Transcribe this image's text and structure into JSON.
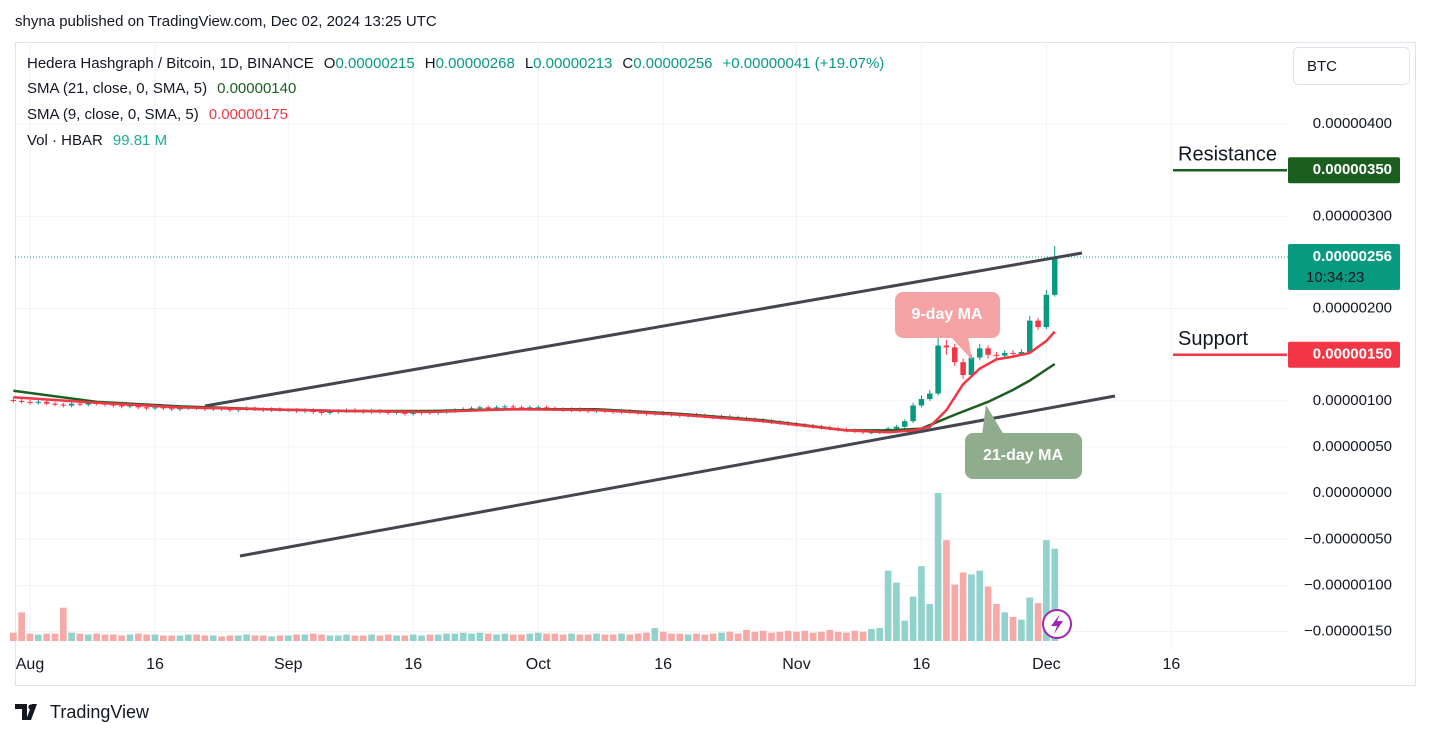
{
  "chart_data": {
    "type": "candlestick",
    "publisher": "shyna published on TradingView.com, Dec 02, 2024 13:25 UTC",
    "title": "Hedera Hashgraph / Bitcoin, 1D, BINANCE",
    "ohlc_letters": [
      "O",
      "H",
      "L",
      "C"
    ],
    "change": "+0.00000041 (+19.07%)",
    "up_color": "#089981",
    "down_color": "#f23645",
    "open": [
      1.01e-06,
      1e-06,
      9.9e-07,
      9.8e-07,
      9.9e-07,
      9.7e-07,
      9.6e-07,
      9.5e-07,
      9.7e-07,
      9.6e-07,
      9.8e-07,
      9.7e-07,
      9.6e-07,
      9.5e-07,
      9.4e-07,
      9.5e-07,
      9.3e-07,
      9.2e-07,
      9.3e-07,
      9.2e-07,
      9.1e-07,
      9.2e-07,
      9.3e-07,
      9.2e-07,
      9.1e-07,
      9.2e-07,
      9.1e-07,
      9e-07,
      9.1e-07,
      9.2e-07,
      9.1e-07,
      9e-07,
      9.1e-07,
      9e-07,
      9e-07,
      8.9e-07,
      9e-07,
      8.8e-07,
      8.7e-07,
      8.8e-07,
      8.9e-07,
      9e-07,
      8.9e-07,
      8.8e-07,
      8.9e-07,
      8.8e-07,
      8.7e-07,
      8.8e-07,
      8.6e-07,
      8.7e-07,
      8.8e-07,
      8.7e-07,
      8.8e-07,
      8.9e-07,
      9e-07,
      9.1e-07,
      9.2e-07,
      9.3e-07,
      9.2e-07,
      9.3e-07,
      9.4e-07,
      9.3e-07,
      9.2e-07,
      9.3e-07,
      9.3e-07,
      9.2e-07,
      9.1e-07,
      9e-07,
      9.1e-07,
      9e-07,
      8.9e-07,
      9e-07,
      8.9e-07,
      8.8e-07,
      8.9e-07,
      8.8e-07,
      8.7e-07,
      8.6e-07,
      8.7e-07,
      8.6e-07,
      8.5e-07,
      8.4e-07,
      8.5e-07,
      8.4e-07,
      8.3e-07,
      8.2e-07,
      8.3e-07,
      8.2e-07,
      8.1e-07,
      8e-07,
      7.9e-07,
      7.8e-07,
      7.7e-07,
      7.6e-07,
      7.5e-07,
      7.4e-07,
      7.3e-07,
      7.2e-07,
      7.1e-07,
      7e-07,
      6.9e-07,
      6.8e-07,
      6.7e-07,
      6.6e-07,
      6.6e-07,
      6.7e-07,
      7e-07,
      7.2e-07,
      7.8e-07,
      9.5e-07,
      1.02e-06,
      1.08e-06,
      1.6e-06,
      1.58e-06,
      1.42e-06,
      1.28e-06,
      1.47e-06,
      1.57e-06,
      1.5e-06,
      1.49e-06,
      1.52e-06,
      1.51e-06,
      1.53e-06,
      1.87e-06,
      1.8e-06,
      2.15e-06
    ],
    "high": [
      1.03e-06,
      1.02e-06,
      1.01e-06,
      1.01e-06,
      1.01e-06,
      9.9e-07,
      9.8e-07,
      9.9e-07,
      9.9e-07,
      1e-06,
      1e-06,
      9.9e-07,
      9.8e-07,
      9.7e-07,
      9.7e-07,
      9.7e-07,
      9.5e-07,
      9.5e-07,
      9.5e-07,
      9.4e-07,
      9.4e-07,
      9.5e-07,
      9.5e-07,
      9.4e-07,
      9.4e-07,
      9.4e-07,
      9.3e-07,
      9.3e-07,
      9.4e-07,
      9.4e-07,
      9.3e-07,
      9.3e-07,
      9.3e-07,
      9.2e-07,
      9.2e-07,
      9.2e-07,
      9.2e-07,
      9e-07,
      9e-07,
      9.1e-07,
      9.2e-07,
      9.2e-07,
      9.1e-07,
      9.1e-07,
      9.1e-07,
      9e-07,
      9e-07,
      9e-07,
      8.9e-07,
      9e-07,
      9e-07,
      9e-07,
      9.1e-07,
      9.2e-07,
      9.3e-07,
      9.4e-07,
      9.5e-07,
      9.5e-07,
      9.5e-07,
      9.6e-07,
      9.6e-07,
      9.5e-07,
      9.5e-07,
      9.5e-07,
      9.5e-07,
      9.4e-07,
      9.3e-07,
      9.3e-07,
      9.3e-07,
      9.2e-07,
      9.2e-07,
      9.2e-07,
      9.1e-07,
      9.1e-07,
      9.1e-07,
      9e-07,
      8.9e-07,
      8.9e-07,
      8.9e-07,
      8.8e-07,
      8.7e-07,
      8.7e-07,
      8.7e-07,
      8.6e-07,
      8.5e-07,
      8.5e-07,
      8.5e-07,
      8.4e-07,
      8.3e-07,
      8.2e-07,
      8.1e-07,
      8e-07,
      7.9e-07,
      7.8e-07,
      7.7e-07,
      7.6e-07,
      7.5e-07,
      7.4e-07,
      7.3e-07,
      7.2e-07,
      7.1e-07,
      7e-07,
      6.9e-07,
      6.8e-07,
      6.9e-07,
      7.2e-07,
      7.4e-07,
      8e-07,
      9.8e-07,
      1.06e-06,
      1.12e-06,
      1.7e-06,
      1.66e-06,
      1.62e-06,
      1.46e-06,
      1.5e-06,
      1.62e-06,
      1.6e-06,
      1.53e-06,
      1.55e-06,
      1.55e-06,
      1.56e-06,
      1.92e-06,
      1.9e-06,
      2.2e-06,
      2.68e-06
    ],
    "low": [
      9.8e-07,
      9.7e-07,
      9.6e-07,
      9.6e-07,
      9.5e-07,
      9.4e-07,
      9.3e-07,
      9.3e-07,
      9.4e-07,
      9.4e-07,
      9.5e-07,
      9.4e-07,
      9.3e-07,
      9.2e-07,
      9.2e-07,
      9.1e-07,
      9e-07,
      9e-07,
      9e-07,
      8.9e-07,
      8.9e-07,
      9e-07,
      9e-07,
      8.9e-07,
      8.9e-07,
      8.9e-07,
      8.8e-07,
      8.8e-07,
      8.9e-07,
      8.9e-07,
      8.8e-07,
      8.8e-07,
      8.8e-07,
      8.8e-07,
      8.7e-07,
      8.7e-07,
      8.6e-07,
      8.5e-07,
      8.5e-07,
      8.6e-07,
      8.7e-07,
      8.7e-07,
      8.6e-07,
      8.6e-07,
      8.6e-07,
      8.5e-07,
      8.5e-07,
      8.4e-07,
      8.4e-07,
      8.5e-07,
      8.5e-07,
      8.5e-07,
      8.6e-07,
      8.7e-07,
      8.8e-07,
      8.9e-07,
      9e-07,
      9e-07,
      9e-07,
      9.1e-07,
      9.1e-07,
      9e-07,
      9e-07,
      9.1e-07,
      9e-07,
      8.9e-07,
      8.8e-07,
      8.8e-07,
      8.8e-07,
      8.7e-07,
      8.7e-07,
      8.7e-07,
      8.6e-07,
      8.6e-07,
      8.6e-07,
      8.5e-07,
      8.4e-07,
      8.4e-07,
      8.4e-07,
      8.3e-07,
      8.2e-07,
      8.2e-07,
      8.2e-07,
      8.1e-07,
      8e-07,
      8e-07,
      8e-07,
      7.9e-07,
      7.8e-07,
      7.7e-07,
      7.6e-07,
      7.5e-07,
      7.4e-07,
      7.3e-07,
      7.2e-07,
      7.1e-07,
      7e-07,
      6.9e-07,
      6.8e-07,
      6.7e-07,
      6.6e-07,
      6.5e-07,
      6.4e-07,
      6.4e-07,
      6.4e-07,
      6.5e-07,
      6.8e-07,
      7e-07,
      7.6e-07,
      9.3e-07,
      1e-06,
      1.06e-06,
      1.5e-06,
      1.38e-06,
      1.24e-06,
      1.26e-06,
      1.44e-06,
      1.46e-06,
      1.46e-06,
      1.47e-06,
      1.48e-06,
      1.49e-06,
      1.51e-06,
      1.77e-06,
      1.78e-06,
      2.13e-06
    ],
    "close": [
      1e-06,
      9.9e-07,
      9.8e-07,
      9.9e-07,
      9.7e-07,
      9.6e-07,
      9.5e-07,
      9.7e-07,
      9.6e-07,
      9.8e-07,
      9.7e-07,
      9.6e-07,
      9.5e-07,
      9.4e-07,
      9.5e-07,
      9.3e-07,
      9.2e-07,
      9.3e-07,
      9.2e-07,
      9.1e-07,
      9.2e-07,
      9.3e-07,
      9.2e-07,
      9.1e-07,
      9.2e-07,
      9.1e-07,
      9e-07,
      9.1e-07,
      9.2e-07,
      9.1e-07,
      9e-07,
      9.1e-07,
      9e-07,
      9e-07,
      8.9e-07,
      9e-07,
      8.8e-07,
      8.7e-07,
      8.8e-07,
      8.9e-07,
      9e-07,
      8.9e-07,
      8.8e-07,
      8.9e-07,
      8.8e-07,
      8.7e-07,
      8.8e-07,
      8.6e-07,
      8.7e-07,
      8.8e-07,
      8.7e-07,
      8.8e-07,
      8.9e-07,
      9e-07,
      9.1e-07,
      9.2e-07,
      9.3e-07,
      9.2e-07,
      9.3e-07,
      9.4e-07,
      9.3e-07,
      9.2e-07,
      9.3e-07,
      9.3e-07,
      9.2e-07,
      9.1e-07,
      9e-07,
      9.1e-07,
      9e-07,
      8.9e-07,
      9e-07,
      8.9e-07,
      8.8e-07,
      8.9e-07,
      8.8e-07,
      8.7e-07,
      8.6e-07,
      8.7e-07,
      8.6e-07,
      8.5e-07,
      8.4e-07,
      8.5e-07,
      8.4e-07,
      8.3e-07,
      8.2e-07,
      8.3e-07,
      8.2e-07,
      8.1e-07,
      8e-07,
      7.9e-07,
      7.8e-07,
      7.7e-07,
      7.6e-07,
      7.5e-07,
      7.4e-07,
      7.3e-07,
      7.2e-07,
      7.1e-07,
      7e-07,
      6.9e-07,
      6.8e-07,
      6.7e-07,
      6.6e-07,
      6.6e-07,
      6.7e-07,
      7e-07,
      7.2e-07,
      7.8e-07,
      9.5e-07,
      1.02e-06,
      1.08e-06,
      1.6e-06,
      1.58e-06,
      1.42e-06,
      1.28e-06,
      1.47e-06,
      1.57e-06,
      1.5e-06,
      1.49e-06,
      1.52e-06,
      1.51e-06,
      1.53e-06,
      1.87e-06,
      1.8e-06,
      2.15e-06,
      2.56e-06
    ],
    "volume": {
      "name": "Vol · HBAR",
      "value_label": "99.81 M",
      "up_color": "#92d2cc",
      "down_color": "#f7a9a7",
      "label_color": "#22ab94",
      "values": [
        9,
        31,
        8,
        7,
        8,
        8,
        36,
        9,
        8,
        7,
        8,
        7,
        7,
        6,
        7,
        8,
        7,
        7,
        6,
        6,
        6,
        7,
        7,
        6,
        6,
        5,
        6,
        6,
        7,
        6,
        6,
        5,
        6,
        6,
        7,
        7,
        8,
        7,
        6,
        6,
        7,
        6,
        6,
        7,
        6,
        7,
        6,
        6,
        7,
        6,
        7,
        7,
        8,
        8,
        9,
        8,
        9,
        8,
        7,
        8,
        7,
        7,
        8,
        9,
        8,
        8,
        7,
        8,
        7,
        7,
        8,
        7,
        7,
        8,
        7,
        8,
        9,
        14,
        10,
        8,
        8,
        7,
        8,
        7,
        8,
        9,
        10,
        8,
        12,
        10,
        11,
        9,
        10,
        11,
        10,
        11,
        9,
        10,
        12,
        10,
        9,
        11,
        10,
        13,
        14,
        76,
        63,
        22,
        48,
        81,
        40,
        160,
        109,
        61,
        74,
        72,
        76,
        59,
        40,
        31,
        26,
        23,
        47,
        41,
        109,
        99.81
      ]
    },
    "series": [
      {
        "name": "SMA (21, close, 0, SMA, 5)",
        "color": "#1b5e20",
        "value_label": "0.00000140",
        "x": [
          0,
          10,
          20,
          30,
          40,
          50,
          60,
          70,
          80,
          90,
          100,
          105,
          109,
          113,
          117,
          120,
          122,
          125
        ],
        "values": [
          1.11e-06,
          9.9e-07,
          9.4e-07,
          9.1e-07,
          8.9e-07,
          8.9e-07,
          9.1e-07,
          9.1e-07,
          8.6e-07,
          7.9e-07,
          6.8e-07,
          6.8e-07,
          7e-07,
          8.5e-07,
          9.9e-07,
          1.12e-06,
          1.22e-06,
          1.4e-06
        ]
      },
      {
        "name": "SMA (9, close, 0, SMA, 5)",
        "color": "#f23645",
        "value_label": "0.00000175",
        "x": [
          0,
          10,
          20,
          30,
          40,
          50,
          60,
          70,
          80,
          90,
          100,
          105,
          108,
          110,
          112,
          114,
          116,
          118,
          120,
          122,
          124,
          125
        ],
        "values": [
          1.04e-06,
          9.8e-07,
          9.3e-07,
          9.1e-07,
          8.9e-07,
          8.8e-07,
          9.1e-07,
          9e-07,
          8.5e-07,
          7.8e-07,
          6.8e-07,
          6.6e-07,
          6.8e-07,
          7.2e-07,
          9e-07,
          1.18e-06,
          1.35e-06,
          1.45e-06,
          1.48e-06,
          1.52e-06,
          1.65e-06,
          1.75e-06
        ]
      }
    ],
    "xlim": [
      0.2,
      153
    ],
    "xticks": [
      {
        "value": 2,
        "label": "Aug"
      },
      {
        "value": 17,
        "label": "16"
      },
      {
        "value": 33,
        "label": "Sep"
      },
      {
        "value": 48,
        "label": "16"
      },
      {
        "value": 63,
        "label": "Oct"
      },
      {
        "value": 78,
        "label": "16"
      },
      {
        "value": 94,
        "label": "Nov"
      },
      {
        "value": 109,
        "label": "16"
      },
      {
        "value": 124,
        "label": "Dec"
      },
      {
        "value": 139,
        "label": "16"
      }
    ],
    "ylim": [
      -1.7e-06,
      4.89e-06
    ],
    "yticks": [
      {
        "value": 4e-06,
        "label": "0.00000400"
      },
      {
        "value": 3e-06,
        "label": "0.00000300"
      },
      {
        "value": 2e-06,
        "label": "0.00000200"
      },
      {
        "value": 1e-06,
        "label": "0.00000100"
      },
      {
        "value": 5e-07,
        "label": "0.00000050"
      },
      {
        "value": 0,
        "label": "0.00000000"
      },
      {
        "value": -5e-07,
        "label": "−0.00000050"
      },
      {
        "value": -1e-06,
        "label": "−0.00000100"
      },
      {
        "value": -1.5e-06,
        "label": "−0.00000150"
      }
    ],
    "grid": true,
    "currency": "BTC",
    "countdown": "10:34:23",
    "levels": [
      {
        "name": "Resistance",
        "value": 3.5e-06,
        "label": "0.00000350",
        "color": "#1b5e20",
        "text_color": "#f23645"
      },
      {
        "name": "Support",
        "value": 1.5e-06,
        "label": "0.00000150",
        "color": "#f23645",
        "text_color": "#1b5e20"
      }
    ],
    "annotations": [
      "9-day MA",
      "21-day MA"
    ],
    "brand": "TradingView"
  }
}
